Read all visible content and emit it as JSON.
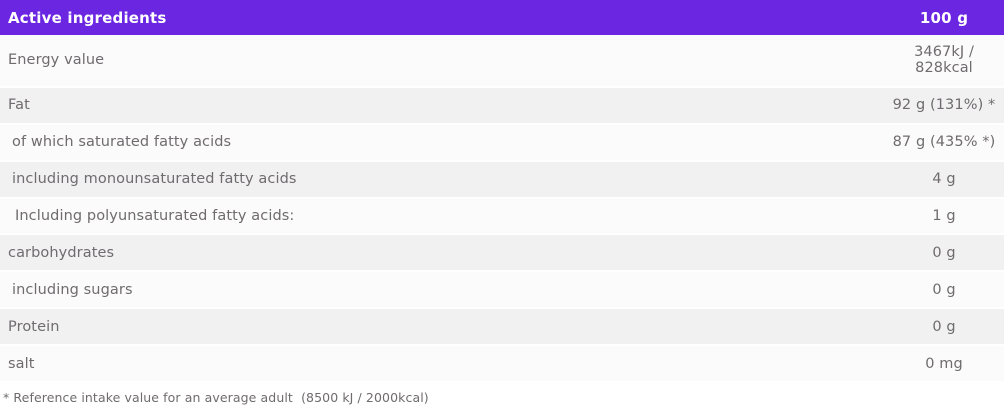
{
  "header": {
    "title": "Active ingredients",
    "amount": "100 g"
  },
  "rows": [
    {
      "label": "Energy value",
      "value": "3467kJ / 828kcal",
      "indent": 0
    },
    {
      "label": "Fat",
      "value": "92 g (131%) *",
      "indent": 0
    },
    {
      "label": "of which saturated fatty acids",
      "value": "87 g (435% *)",
      "indent": 1
    },
    {
      "label": "including monounsaturated fatty acids",
      "value": "4 g",
      "indent": 1
    },
    {
      "label": "Including polyunsaturated fatty acids:",
      "value": "1 g",
      "indent": 2
    },
    {
      "label": "carbohydrates",
      "value": "0 g",
      "indent": 0
    },
    {
      "label": "including sugars",
      "value": "0 g",
      "indent": 1
    },
    {
      "label": "Protein",
      "value": "0 g",
      "indent": 0
    },
    {
      "label": "salt",
      "value": "0 mg",
      "indent": 0
    }
  ],
  "footer": {
    "note": "* Reference intake value for an average adult  (8500 kJ / 2000kcal)"
  },
  "colors": {
    "header_bg": "#6b26e2",
    "header_text": "#ffffff",
    "row_bg": "#fbfbfb",
    "row_alt_bg": "#f1f1f2",
    "text": "#6f6b6e"
  }
}
